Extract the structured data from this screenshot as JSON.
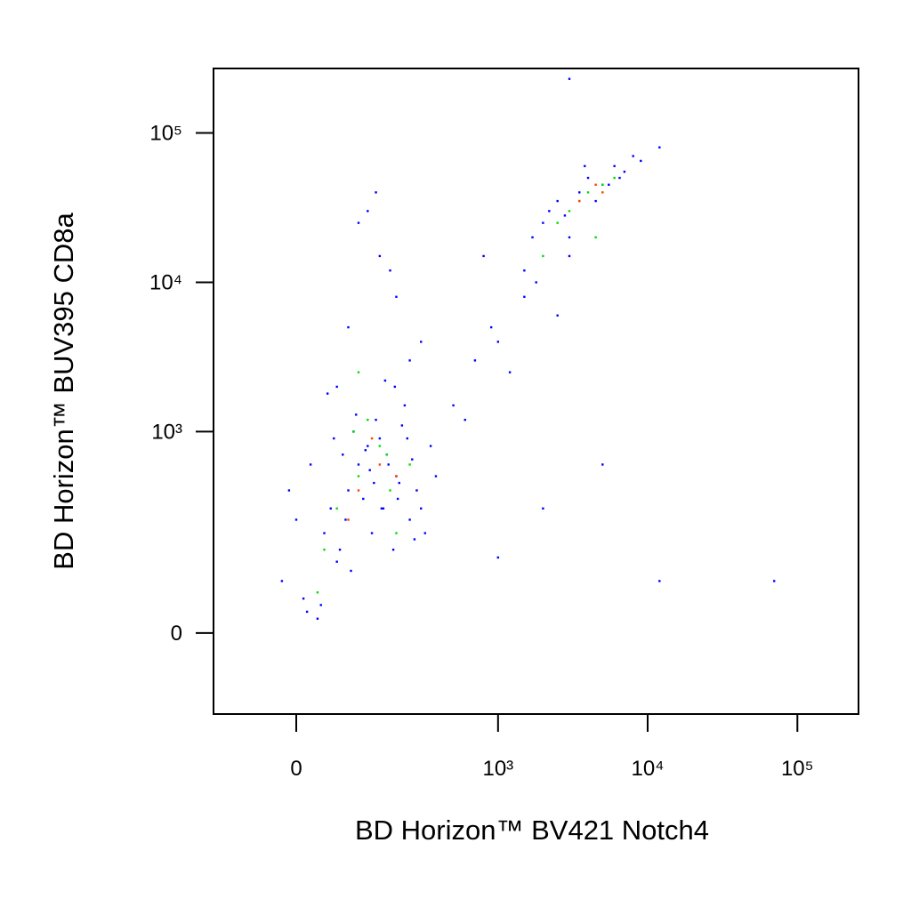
{
  "chart_data": {
    "type": "scatter",
    "xlabel": "BD Horizon™ BV421 Notch4",
    "ylabel": "BD Horizon™ BUV395 CD8a",
    "xscale": "biexponential",
    "yscale": "biexponential",
    "xlim": [
      -148,
      256000
    ],
    "ylim": [
      -144,
      270000
    ],
    "xticks": [
      0,
      {
        "value": 1000,
        "label": "10³"
      },
      {
        "value": 10000,
        "label": "10⁴"
      },
      {
        "value": 100000,
        "label": "10⁵"
      }
    ],
    "yticks": [
      0,
      {
        "value": 1000,
        "label": "10³"
      },
      {
        "value": 10000,
        "label": "10⁴"
      },
      {
        "value": 100000,
        "label": "10⁵"
      }
    ],
    "series": [
      {
        "color": "#0000ff",
        "x": [
          10,
          40,
          80,
          120,
          160,
          60,
          100,
          140,
          200,
          250,
          30,
          70,
          110,
          150,
          190,
          230,
          280,
          -20,
          20,
          50,
          90,
          130,
          170,
          210,
          300,
          350,
          0,
          45,
          85,
          125,
          165,
          205,
          260,
          320,
          15,
          55,
          95,
          135,
          175,
          220,
          270,
          380,
          -10,
          35,
          75,
          115,
          155,
          195,
          240,
          65,
          80,
          150,
          120,
          200,
          250,
          100,
          180,
          300,
          60,
          140,
          500,
          700,
          900,
          1200,
          1500,
          600,
          1000,
          800,
          1800,
          2500,
          2000,
          2500,
          3000,
          3500,
          4000,
          5000,
          6000,
          7000,
          8000,
          2200,
          3000,
          4500,
          5500,
          6500,
          1700,
          2800,
          3800,
          9000,
          12000,
          1500,
          1000,
          2000,
          5000,
          12000,
          70000,
          3000
        ],
        "values": [
          50,
          200,
          400,
          800,
          300,
          120,
          600,
          1200,
          500,
          250,
          20,
          700,
          350,
          900,
          150,
          1500,
          400,
          80,
          600,
          300,
          1000,
          200,
          700,
          450,
          300,
          800,
          250,
          1800,
          100,
          550,
          2200,
          350,
          650,
          200,
          30,
          900,
          1300,
          450,
          600,
          1100,
          180,
          500,
          400,
          40,
          250,
          750,
          300,
          2000,
          900,
          150,
          5000,
          15000,
          30000,
          8000,
          3000,
          25000,
          12000,
          4000,
          2000,
          40000,
          1500,
          3000,
          5000,
          2500,
          8000,
          1200,
          4000,
          15000,
          10000,
          6000,
          25000,
          35000,
          20000,
          40000,
          50000,
          45000,
          60000,
          55000,
          70000,
          30000,
          15000,
          35000,
          45000,
          50000,
          20000,
          28000,
          60000,
          65000,
          80000,
          12000,
          130,
          300,
          600,
          80,
          80,
          230000
        ]
      },
      {
        "color": "#00dd00",
        "x": [
          60,
          100,
          150,
          200,
          40,
          120,
          250,
          90,
          180,
          30,
          3000,
          4000,
          5000,
          2500,
          3500,
          6000,
          4500,
          2000,
          100,
          170
        ],
        "values": [
          300,
          500,
          800,
          200,
          150,
          1200,
          600,
          1000,
          400,
          60,
          30000,
          40000,
          45000,
          25000,
          35000,
          50000,
          20000,
          15000,
          2500,
          700
        ]
      },
      {
        "color": "#ff4000",
        "x": [
          100,
          150,
          80,
          130,
          3500,
          4500,
          5000,
          200
        ],
        "values": [
          400,
          600,
          250,
          900,
          35000,
          45000,
          40000,
          500
        ]
      }
    ]
  }
}
